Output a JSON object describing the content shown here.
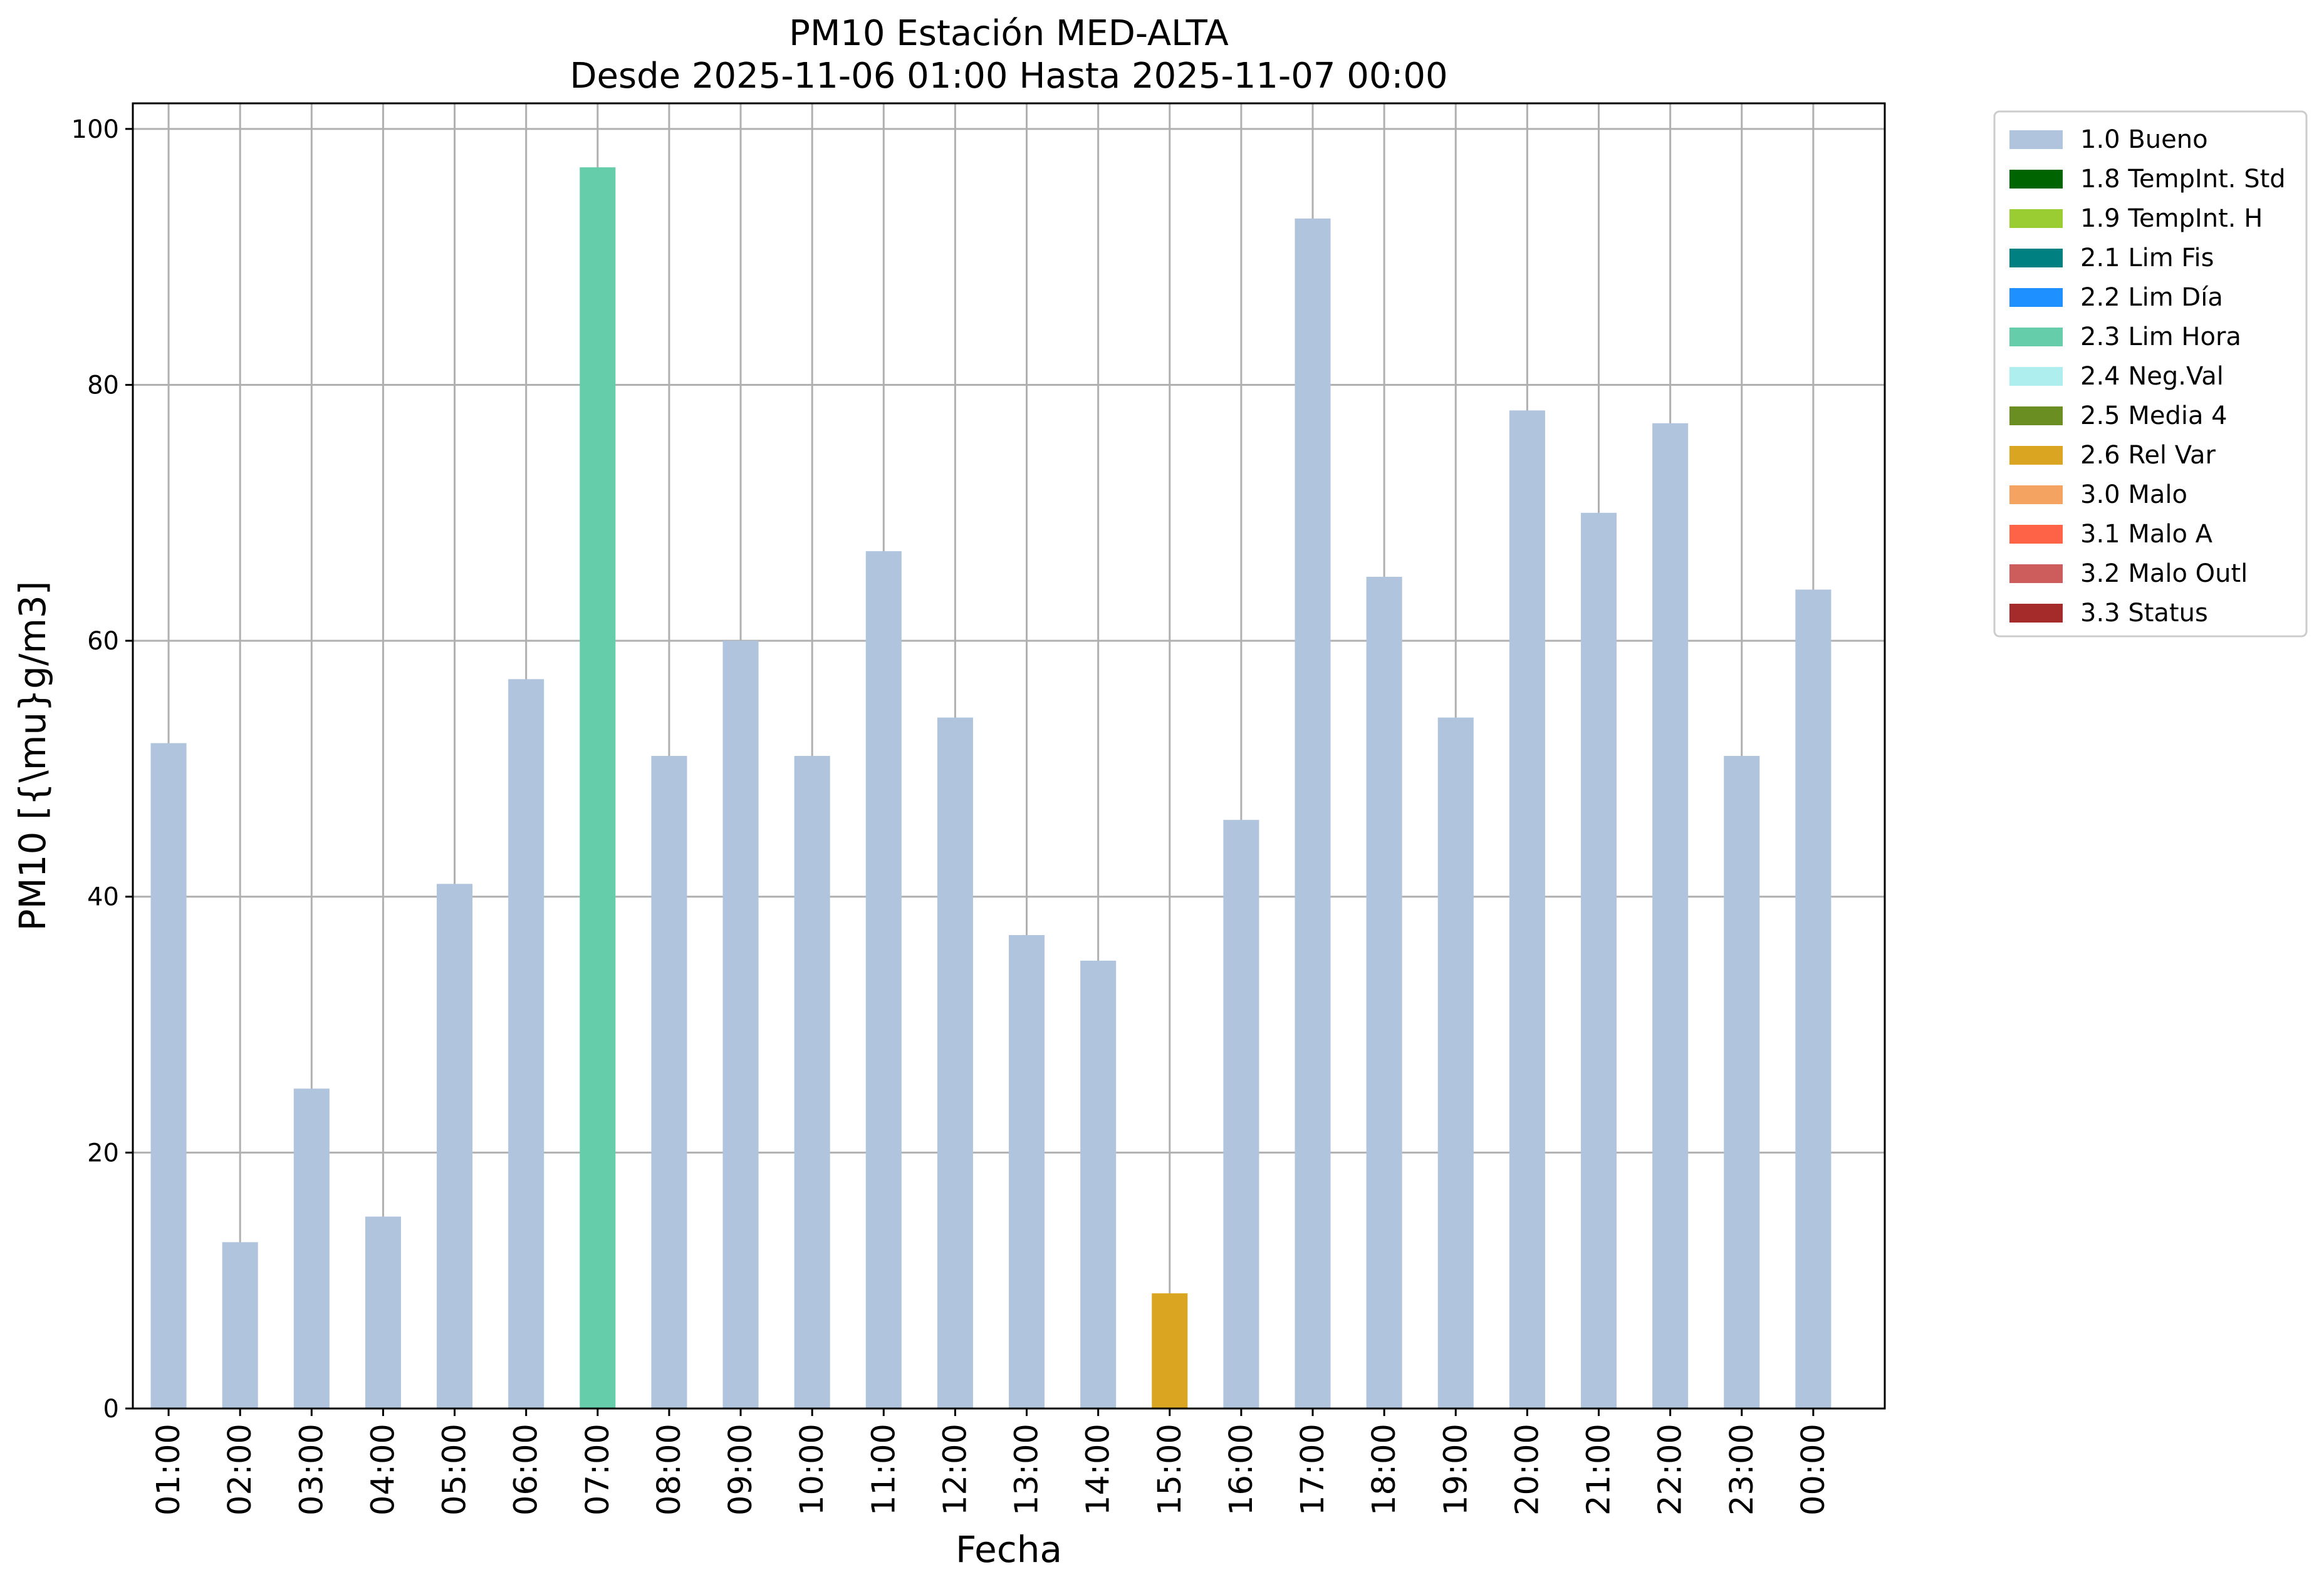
{
  "chart_data": {
    "type": "bar",
    "title": "PM10 Estación MED-ALTA",
    "subtitle": "Desde 2025-11-06 01:00 Hasta 2025-11-07 00:00",
    "xlabel": "Fecha",
    "ylabel": "PM10 [{\\mu}g/m3]",
    "ylim": [
      0,
      102
    ],
    "yticks": [
      0,
      20,
      40,
      60,
      80,
      100
    ],
    "grid": true,
    "legend_position": "outside-top-right",
    "categories": [
      "01:00",
      "02:00",
      "03:00",
      "04:00",
      "05:00",
      "06:00",
      "07:00",
      "08:00",
      "09:00",
      "10:00",
      "11:00",
      "12:00",
      "13:00",
      "14:00",
      "15:00",
      "16:00",
      "17:00",
      "18:00",
      "19:00",
      "20:00",
      "21:00",
      "22:00",
      "23:00",
      "00:00"
    ],
    "values": [
      52,
      13,
      25,
      15,
      41,
      57,
      97,
      51,
      60,
      51,
      67,
      54,
      37,
      35,
      9,
      46,
      93,
      65,
      54,
      78,
      70,
      77,
      51,
      64
    ],
    "flags": [
      "1.0 Bueno",
      "1.0 Bueno",
      "1.0 Bueno",
      "1.0 Bueno",
      "1.0 Bueno",
      "1.0 Bueno",
      "2.3 Lim Hora",
      "1.0 Bueno",
      "1.0 Bueno",
      "1.0 Bueno",
      "1.0 Bueno",
      "1.0 Bueno",
      "1.0 Bueno",
      "1.0 Bueno",
      "2.6 Rel Var",
      "1.0 Bueno",
      "1.0 Bueno",
      "1.0 Bueno",
      "1.0 Bueno",
      "1.0 Bueno",
      "1.0 Bueno",
      "1.0 Bueno",
      "1.0 Bueno",
      "1.0 Bueno"
    ],
    "legend": [
      {
        "label": "1.0 Bueno",
        "color": "#b0c4de"
      },
      {
        "label": "1.8 TempInt. Std",
        "color": "#006400"
      },
      {
        "label": "1.9 TempInt. H",
        "color": "#9acd32"
      },
      {
        "label": "2.1 Lim Fis",
        "color": "#008080"
      },
      {
        "label": "2.2 Lim Día",
        "color": "#1e90ff"
      },
      {
        "label": "2.3 Lim Hora",
        "color": "#66cdaa"
      },
      {
        "label": "2.4 Neg.Val",
        "color": "#afeeee"
      },
      {
        "label": "2.5 Media 4",
        "color": "#6b8e23"
      },
      {
        "label": "2.6 Rel Var",
        "color": "#daa520"
      },
      {
        "label": "3.0 Malo",
        "color": "#f4a460"
      },
      {
        "label": "3.1 Malo A",
        "color": "#ff6347"
      },
      {
        "label": "3.2 Malo Outl",
        "color": "#cd5c5c"
      },
      {
        "label": "3.3 Status",
        "color": "#a52a2a"
      }
    ]
  }
}
